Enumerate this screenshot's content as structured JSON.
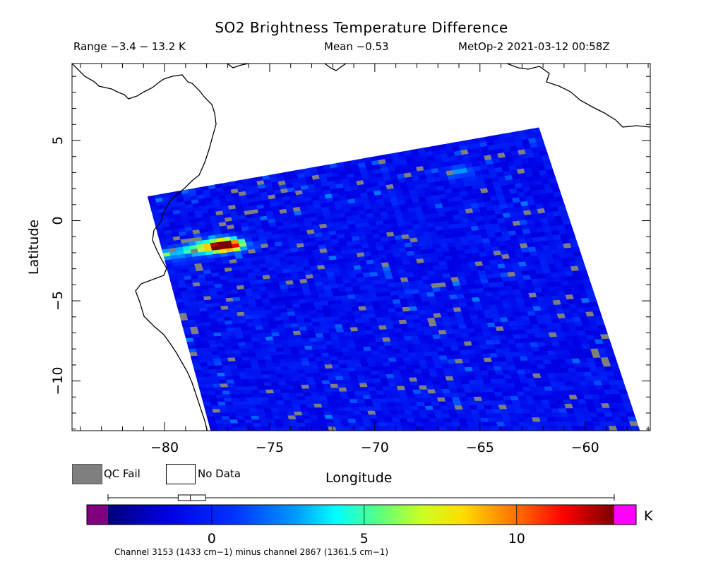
{
  "title": "SO2 Brightness Temperature Difference",
  "info": {
    "range": "Range −3.4 − 13.2 K",
    "mean": "Mean −0.53",
    "satellite_time": "MetOp-2 2021-03-12 00:58Z"
  },
  "axes": {
    "xlabel": "Longitude",
    "ylabel": "Latitude",
    "lon_range": [
      -84.4,
      -56.9
    ],
    "lat_range": [
      -13.1,
      9.8
    ],
    "lon_ticks": [
      -80,
      -75,
      -70,
      -65,
      -60
    ],
    "lat_ticks": [
      5,
      0,
      -5,
      -10
    ],
    "lon_tick_labels": [
      "−80",
      "−75",
      "−70",
      "−65",
      "−60"
    ],
    "lat_tick_labels": [
      "5",
      "0",
      "−5",
      "−10"
    ]
  },
  "legend": {
    "qc_fail": "QC Fail",
    "no_data": "No Data",
    "qc_fail_color": "#7f7f7f",
    "no_data_color": "#ffffff"
  },
  "colorbar": {
    "units": "K",
    "range": [
      -3.4,
      13.2
    ],
    "ticks": [
      0,
      5,
      10
    ],
    "tick_labels": [
      "0",
      "5",
      "10"
    ],
    "underflow_color": "#800080",
    "overflow_color": "#ff00ff",
    "distribution_box": {
      "whisker_low": -3.4,
      "q1": -1.1,
      "median": -0.7,
      "q3": -0.2,
      "whisker_high": 13.2
    }
  },
  "caption": "Channel 3153 (1433 cm−1) minus channel 2867 (1361.5 cm−1)",
  "chart_data": {
    "type": "heatmap",
    "title": "SO2 Brightness Temperature Difference",
    "xlabel": "Longitude",
    "ylabel": "Latitude",
    "xlim": [
      -84.4,
      -56.9
    ],
    "ylim": [
      -13.1,
      9.8
    ],
    "value_range": [
      -3.4,
      13.2
    ],
    "mean": -0.53,
    "units": "K",
    "swath_corners_lonlat": [
      [
        -80.8,
        1.5
      ],
      [
        -62.2,
        5.8
      ],
      [
        -57.4,
        -13.1
      ],
      [
        -77.8,
        -13.1
      ]
    ],
    "background_value": -0.8,
    "hotspots": [
      {
        "lon": -77.4,
        "lat": -1.6,
        "value": 12.5
      },
      {
        "lon": -76.8,
        "lat": -1.5,
        "value": 9.0
      },
      {
        "lon": -78.6,
        "lat": -1.8,
        "value": 6.0
      },
      {
        "lon": -79.8,
        "lat": -2.1,
        "value": 4.5
      },
      {
        "lon": -66.0,
        "lat": 3.0,
        "value": 3.0
      }
    ]
  }
}
